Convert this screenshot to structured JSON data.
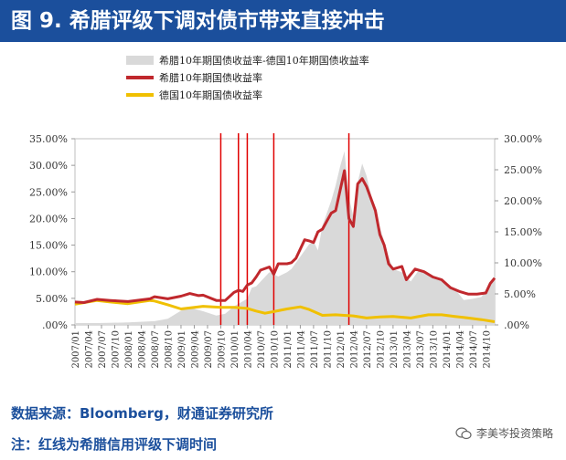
{
  "title": "图 9. 希腊评级下调对债市带来直接冲击",
  "footer": {
    "source": "数据来源：Bloomberg，财通证券研究所",
    "note": "注：红线为希腊信用评级下调时间",
    "watermark": "李美岑投资策略"
  },
  "colors": {
    "title_bg": "#1b4f9c",
    "spread": "#d9d9d9",
    "greece": "#c0282d",
    "germany": "#f0c000",
    "event": "#e00000"
  },
  "chart_data": {
    "type": "line",
    "x_start": "2007/01",
    "x_end": "2014/12",
    "xtick_labels": [
      "2007/01",
      "2007/04",
      "2007/07",
      "2007/10",
      "2008/01",
      "2008/04",
      "2008/07",
      "2008/10",
      "2009/01",
      "2009/04",
      "2009/07",
      "2009/10",
      "2010/01",
      "2010/04",
      "2010/07",
      "2010/10",
      "2011/01",
      "2011/04",
      "2011/07",
      "2011/10",
      "2012/01",
      "2012/04",
      "2012/07",
      "2012/10",
      "2013/01",
      "2013/04",
      "2013/07",
      "2013/10",
      "2014/01",
      "2014/04",
      "2014/07",
      "2014/10"
    ],
    "left_axis": {
      "min": 0,
      "max": 35,
      "step": 5,
      "labels": [
        ".00%",
        "5.00%",
        "10.00%",
        "15.00%",
        "20.00%",
        "25.00%",
        "30.00%",
        "35.00%"
      ]
    },
    "right_axis": {
      "min": 0,
      "max": 30,
      "step": 5,
      "labels": [
        ".00%",
        "5.00%",
        "10.00%",
        "15.00%",
        "20.00%",
        "25.00%",
        "30.00%"
      ]
    },
    "series": [
      {
        "name": "希腊10年期国债收益率-德国10年期国债收益率",
        "kind": "area",
        "axis": "right",
        "points": [
          [
            "2007/01",
            0.3
          ],
          [
            "2007/06",
            0.3
          ],
          [
            "2008/01",
            0.4
          ],
          [
            "2008/07",
            0.6
          ],
          [
            "2008/10",
            1.0
          ],
          [
            "2009/01",
            2.3
          ],
          [
            "2009/03",
            2.8
          ],
          [
            "2009/06",
            2.2
          ],
          [
            "2009/09",
            1.5
          ],
          [
            "2009/11",
            1.8
          ],
          [
            "2010/01",
            3.0
          ],
          [
            "2010/04",
            4.2
          ],
          [
            "2010/05",
            6.0
          ],
          [
            "2010/06",
            6.2
          ],
          [
            "2010/09",
            8.5
          ],
          [
            "2010/11",
            7.8
          ],
          [
            "2011/01",
            8.5
          ],
          [
            "2011/02",
            9.0
          ],
          [
            "2011/04",
            11.0
          ],
          [
            "2011/06",
            13.0
          ],
          [
            "2011/07",
            13.5
          ],
          [
            "2011/08",
            12.0
          ],
          [
            "2011/09",
            16.0
          ],
          [
            "2011/11",
            20.0
          ],
          [
            "2011/12",
            22.5
          ],
          [
            "2012/01",
            25.5
          ],
          [
            "2012/02",
            28.0
          ],
          [
            "2012/03",
            20.5
          ],
          [
            "2012/04",
            17.5
          ],
          [
            "2012/05",
            23.0
          ],
          [
            "2012/06",
            26.0
          ],
          [
            "2012/07",
            24.0
          ],
          [
            "2012/09",
            18.0
          ],
          [
            "2012/11",
            13.5
          ],
          [
            "2012/12",
            11.0
          ],
          [
            "2013/01",
            9.0
          ],
          [
            "2013/03",
            8.5
          ],
          [
            "2013/05",
            7.0
          ],
          [
            "2013/07",
            9.0
          ],
          [
            "2013/09",
            8.0
          ],
          [
            "2013/11",
            7.5
          ],
          [
            "2014/01",
            6.5
          ],
          [
            "2014/03",
            5.8
          ],
          [
            "2014/05",
            4.0
          ],
          [
            "2014/07",
            4.2
          ],
          [
            "2014/09",
            4.5
          ],
          [
            "2014/11",
            6.8
          ],
          [
            "2014/12",
            7.5
          ]
        ]
      },
      {
        "name": "希腊10年期国债收益率",
        "kind": "line",
        "axis": "left",
        "points": [
          [
            "2007/01",
            4.3
          ],
          [
            "2007/03",
            4.2
          ],
          [
            "2007/06",
            4.8
          ],
          [
            "2007/09",
            4.6
          ],
          [
            "2008/01",
            4.4
          ],
          [
            "2008/06",
            4.9
          ],
          [
            "2008/07",
            5.3
          ],
          [
            "2008/10",
            4.9
          ],
          [
            "2009/01",
            5.4
          ],
          [
            "2009/03",
            5.9
          ],
          [
            "2009/05",
            5.5
          ],
          [
            "2009/06",
            5.6
          ],
          [
            "2009/09",
            4.6
          ],
          [
            "2009/11",
            4.6
          ],
          [
            "2010/01",
            6.1
          ],
          [
            "2010/02",
            6.5
          ],
          [
            "2010/03",
            6.3
          ],
          [
            "2010/04",
            7.5
          ],
          [
            "2010/05",
            7.9
          ],
          [
            "2010/06",
            9.0
          ],
          [
            "2010/07",
            10.3
          ],
          [
            "2010/09",
            10.9
          ],
          [
            "2010/10",
            9.5
          ],
          [
            "2010/11",
            11.5
          ],
          [
            "2011/01",
            11.5
          ],
          [
            "2011/02",
            11.7
          ],
          [
            "2011/03",
            12.5
          ],
          [
            "2011/05",
            16.0
          ],
          [
            "2011/06",
            15.8
          ],
          [
            "2011/07",
            15.5
          ],
          [
            "2011/08",
            17.5
          ],
          [
            "2011/09",
            18.0
          ],
          [
            "2011/10",
            19.5
          ],
          [
            "2011/11",
            21.0
          ],
          [
            "2011/12",
            21.5
          ],
          [
            "2012/02",
            29.0
          ],
          [
            "2012/03",
            20.0
          ],
          [
            "2012/04",
            18.5
          ],
          [
            "2012/05",
            26.5
          ],
          [
            "2012/06",
            27.5
          ],
          [
            "2012/07",
            26.0
          ],
          [
            "2012/09",
            21.5
          ],
          [
            "2012/10",
            17.0
          ],
          [
            "2012/11",
            15.0
          ],
          [
            "2012/12",
            11.5
          ],
          [
            "2013/01",
            10.5
          ],
          [
            "2013/03",
            11.0
          ],
          [
            "2013/04",
            8.5
          ],
          [
            "2013/06",
            10.5
          ],
          [
            "2013/08",
            10.0
          ],
          [
            "2013/10",
            9.0
          ],
          [
            "2013/12",
            8.5
          ],
          [
            "2014/02",
            7.0
          ],
          [
            "2014/04",
            6.3
          ],
          [
            "2014/06",
            5.8
          ],
          [
            "2014/08",
            5.8
          ],
          [
            "2014/10",
            6.0
          ],
          [
            "2014/11",
            7.8
          ],
          [
            "2014/12",
            8.8
          ]
        ]
      },
      {
        "name": "德国10年期国债收益率",
        "kind": "line",
        "axis": "left",
        "points": [
          [
            "2007/01",
            3.9
          ],
          [
            "2007/06",
            4.6
          ],
          [
            "2007/09",
            4.3
          ],
          [
            "2008/01",
            4.0
          ],
          [
            "2008/06",
            4.6
          ],
          [
            "2008/07",
            4.5
          ],
          [
            "2008/10",
            3.8
          ],
          [
            "2009/01",
            3.0
          ],
          [
            "2009/06",
            3.5
          ],
          [
            "2009/10",
            3.3
          ],
          [
            "2010/01",
            3.3
          ],
          [
            "2010/04",
            3.1
          ],
          [
            "2010/06",
            2.6
          ],
          [
            "2010/08",
            2.2
          ],
          [
            "2010/10",
            2.5
          ],
          [
            "2011/01",
            3.0
          ],
          [
            "2011/04",
            3.4
          ],
          [
            "2011/06",
            2.9
          ],
          [
            "2011/09",
            1.8
          ],
          [
            "2011/12",
            1.9
          ],
          [
            "2012/04",
            1.7
          ],
          [
            "2012/07",
            1.3
          ],
          [
            "2012/10",
            1.5
          ],
          [
            "2013/01",
            1.6
          ],
          [
            "2013/05",
            1.3
          ],
          [
            "2013/09",
            1.9
          ],
          [
            "2013/12",
            1.9
          ],
          [
            "2014/03",
            1.6
          ],
          [
            "2014/06",
            1.3
          ],
          [
            "2014/09",
            1.0
          ],
          [
            "2014/12",
            0.6
          ]
        ]
      }
    ],
    "events": [
      "2009/10",
      "2010/02",
      "2010/04",
      "2010/10",
      "2012/03"
    ]
  }
}
